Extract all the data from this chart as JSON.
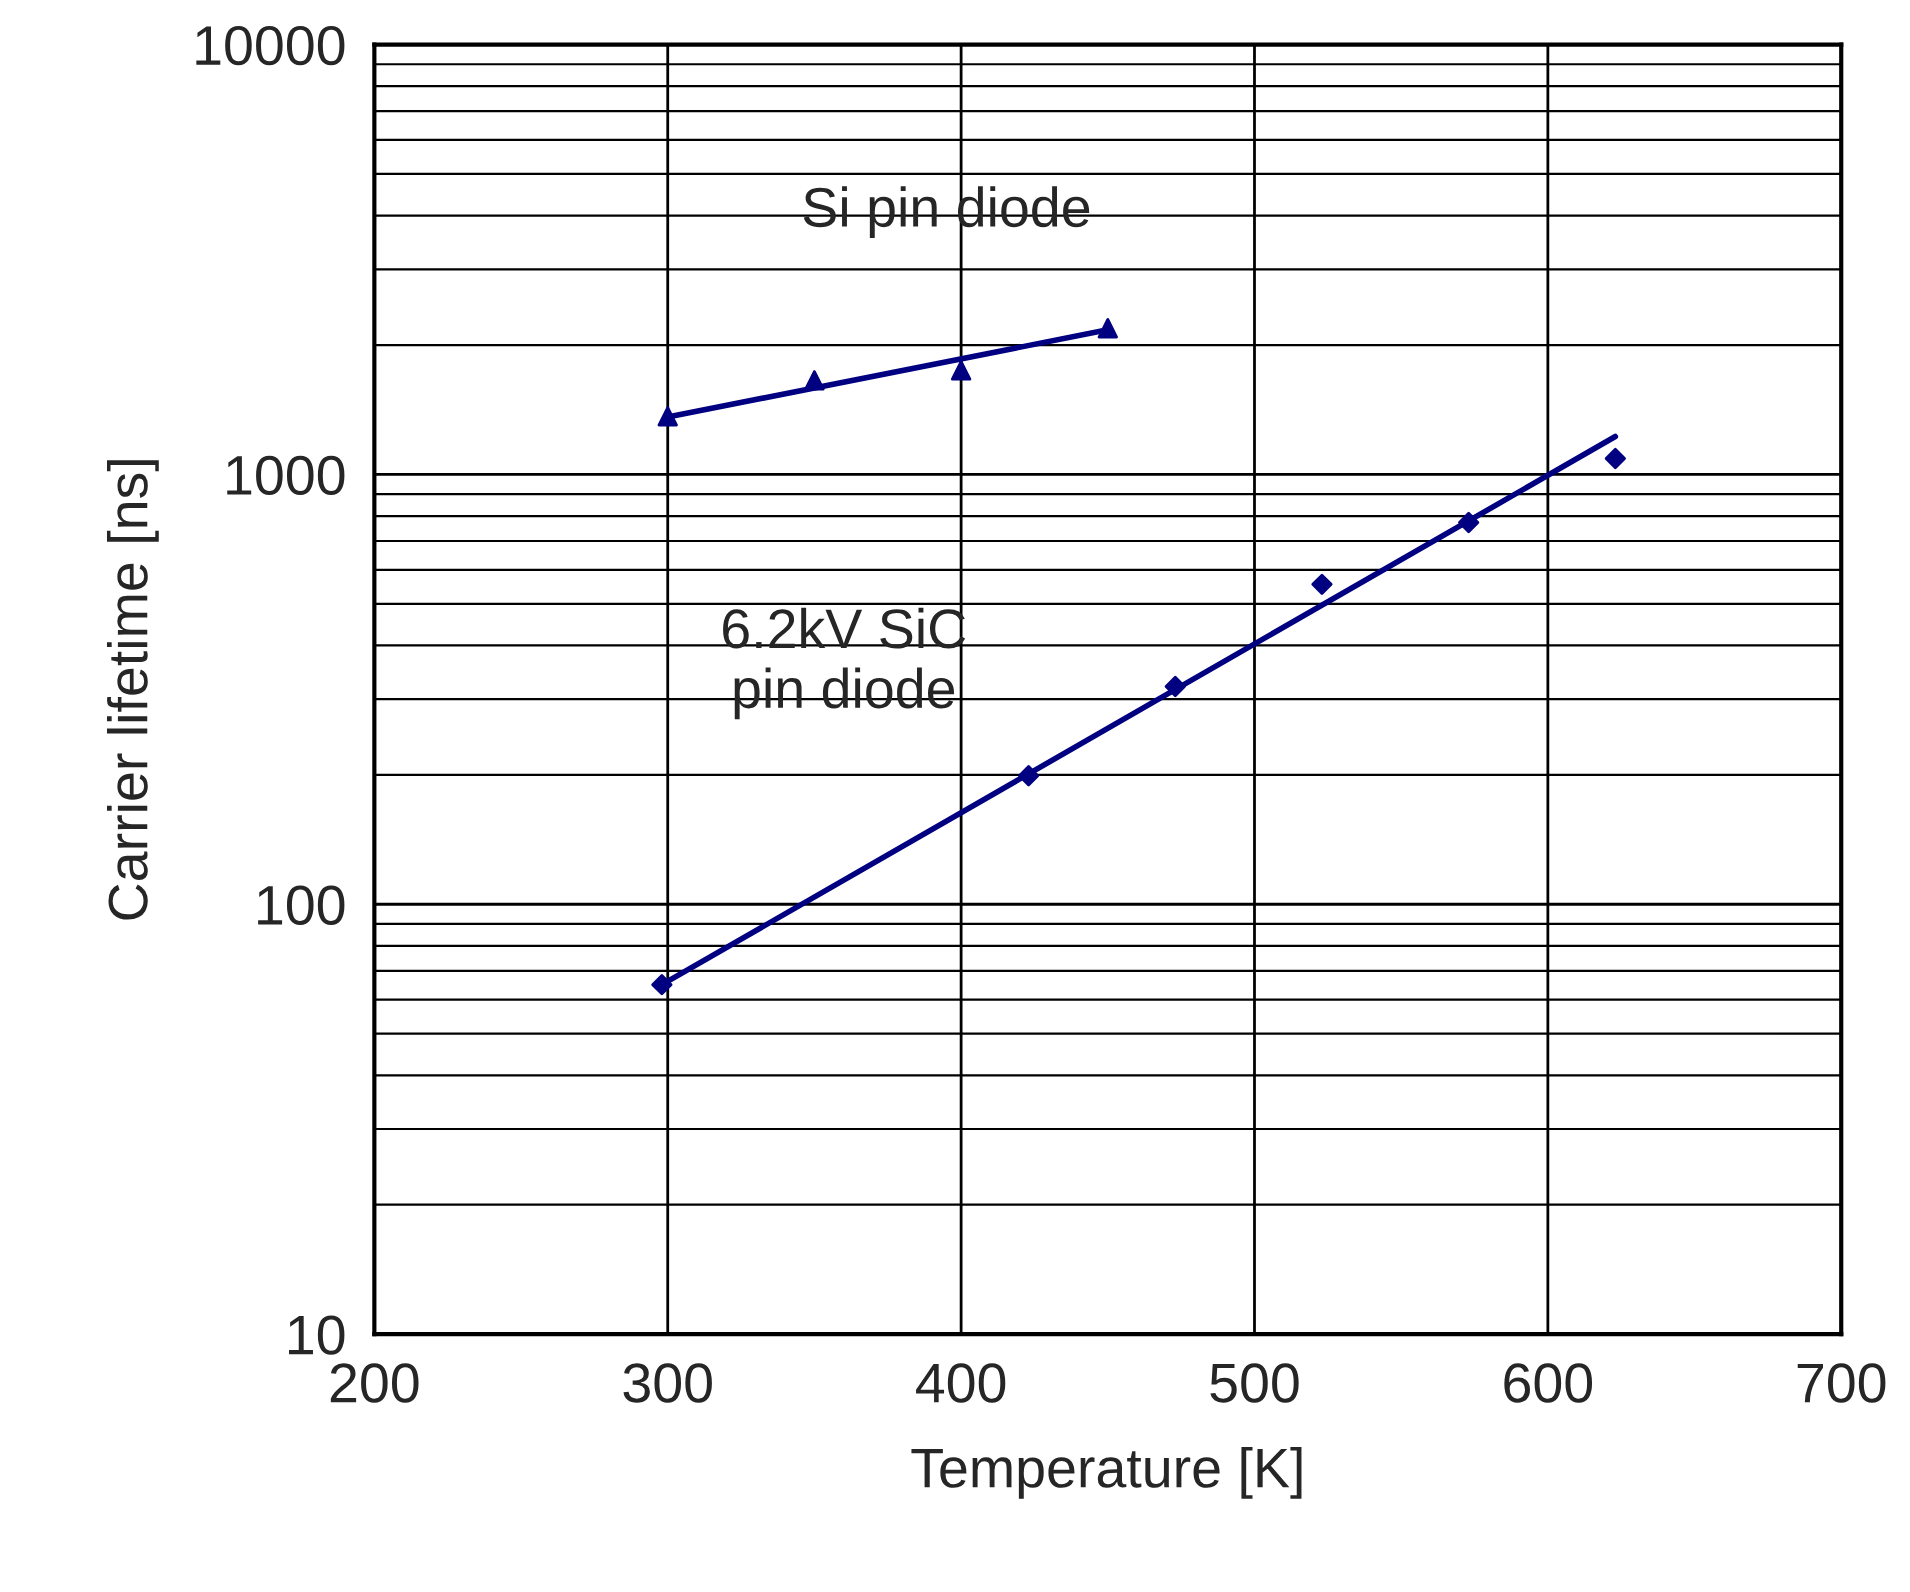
{
  "chart_data": {
    "type": "scatter",
    "xlabel": "Temperature [K]",
    "ylabel": "Carrier lifetime [ns]",
    "xlim": [
      200,
      700
    ],
    "xticks": [
      200,
      300,
      400,
      500,
      600,
      700
    ],
    "ylim": [
      10,
      10000
    ],
    "yticks": [
      10,
      100,
      1000,
      10000
    ],
    "log": "y",
    "grid": true,
    "series": [
      {
        "marker": "triangle",
        "color": "#000080",
        "x": [
          300,
          350,
          400,
          450
        ],
        "values": [
          1365,
          1655,
          1746,
          2188
        ]
      },
      {
        "type": "line",
        "marker": "none",
        "color": "#000080",
        "x": [
          300,
          450
        ],
        "values": [
          1360,
          2170
        ]
      },
      {
        "marker": "diamond",
        "color": "#000080",
        "x": [
          298,
          423,
          473,
          523,
          573,
          623
        ],
        "values": [
          65,
          199,
          321,
          555,
          773,
          1089
        ]
      },
      {
        "type": "line",
        "marker": "none",
        "color": "#000080",
        "x": [
          298,
          623
        ],
        "values": [
          65,
          1225
        ]
      }
    ],
    "annotations": [
      "Si pin diode",
      "6.2kV SiC\npin diode"
    ]
  }
}
